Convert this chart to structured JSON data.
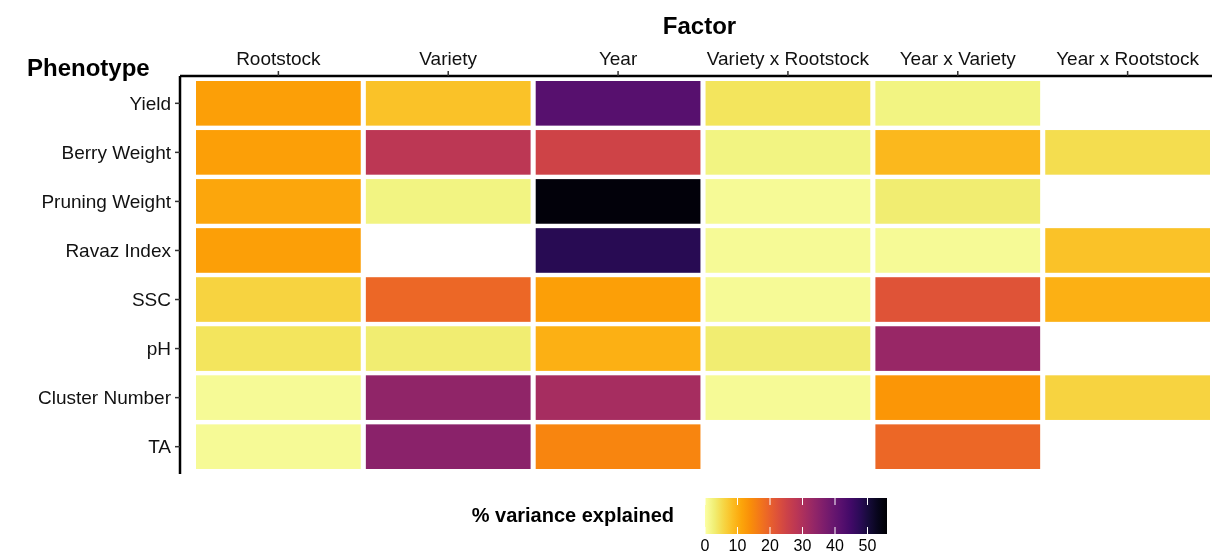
{
  "chart_data": {
    "type": "heatmap",
    "xlabel": "Factor",
    "ylabel": "Phenotype",
    "clabel": "% variance explained",
    "categories": [
      "Rootstock",
      "Variety",
      "Year",
      "Variety x Rootstock",
      "Year x Variety",
      "Year x Rootstock"
    ],
    "y_categories": [
      "Yield",
      "Berry Weight",
      "Pruning Weight",
      "Ravaz Index",
      "SSC",
      "pH",
      "Cluster Number",
      "TA"
    ],
    "cells": [
      [
        12,
        8,
        42,
        4,
        2,
        null
      ],
      [
        12,
        28,
        25,
        2,
        9,
        5
      ],
      [
        11,
        2,
        55,
        1,
        3,
        null
      ],
      [
        12,
        null,
        48,
        1,
        1,
        8
      ],
      [
        6,
        19,
        12,
        1,
        22,
        10
      ],
      [
        4,
        3,
        10,
        3,
        33,
        null
      ],
      [
        1,
        34,
        31,
        1,
        13,
        6
      ],
      [
        1,
        35,
        15,
        null,
        19,
        null
      ]
    ],
    "clim": [
      0,
      56
    ],
    "cticks": [
      0,
      10,
      20,
      30,
      40,
      50
    ]
  }
}
